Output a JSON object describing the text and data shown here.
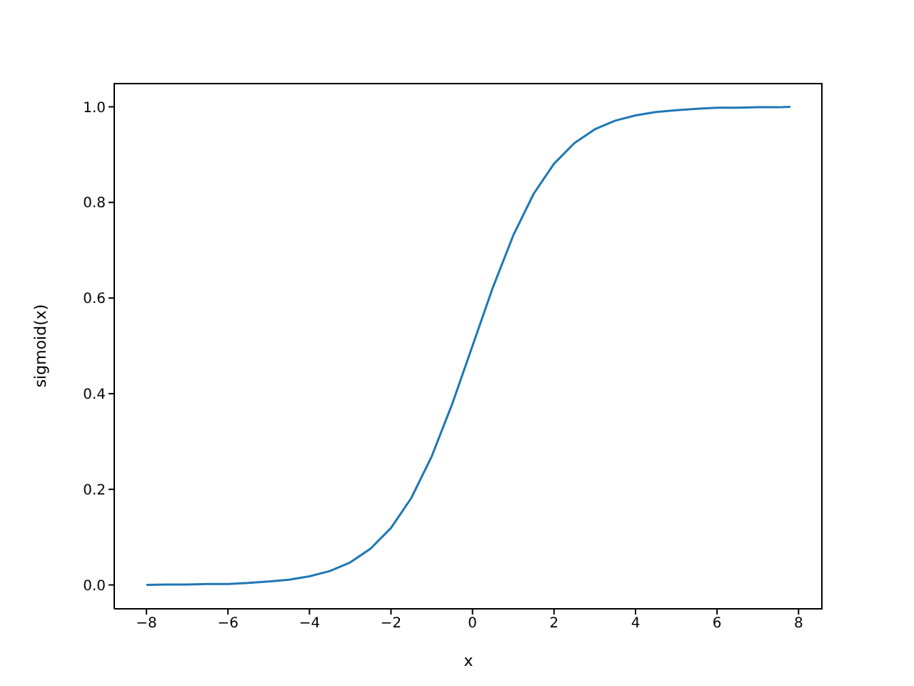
{
  "chart_data": {
    "type": "line",
    "xlabel": "x",
    "ylabel": "sigmoid(x)",
    "x": [
      -8,
      -7.5,
      -7,
      -6.5,
      -6,
      -5.5,
      -5,
      -4.5,
      -4,
      -3.5,
      -3,
      -2.5,
      -2,
      -1.5,
      -1,
      -0.5,
      0,
      0.5,
      1,
      1.5,
      2,
      2.5,
      3,
      3.5,
      4,
      4.5,
      5,
      5.5,
      6,
      6.5,
      7,
      7.5,
      7.8
    ],
    "series": [
      {
        "color": "#1f77b4",
        "values": [
          0.0,
          0.001,
          0.001,
          0.002,
          0.002,
          0.004,
          0.007,
          0.011,
          0.018,
          0.029,
          0.047,
          0.076,
          0.119,
          0.182,
          0.269,
          0.378,
          0.5,
          0.622,
          0.731,
          0.818,
          0.881,
          0.924,
          0.953,
          0.971,
          0.982,
          0.989,
          0.993,
          0.996,
          0.998,
          0.998,
          0.999,
          0.999,
          1.0
        ]
      }
    ],
    "xlim": [
      -8.79,
      8.59
    ],
    "xticks": [
      {
        "value": -8,
        "label": "−8"
      },
      {
        "value": -6,
        "label": "−6"
      },
      {
        "value": -4,
        "label": "−4"
      },
      {
        "value": -2,
        "label": "−2"
      },
      0,
      2,
      4,
      6,
      8
    ],
    "ylim": [
      -0.05,
      1.05
    ],
    "yticks": [
      {
        "value": 0,
        "label": "0.0"
      },
      {
        "value": 0.2,
        "label": "0.2"
      },
      {
        "value": 0.4,
        "label": "0.4"
      },
      {
        "value": 0.6,
        "label": "0.6"
      },
      {
        "value": 0.8,
        "label": "0.8"
      },
      {
        "value": 1,
        "label": "1.0"
      }
    ],
    "grid": false,
    "legend": false,
    "marker": "none",
    "line_style": "solid"
  }
}
